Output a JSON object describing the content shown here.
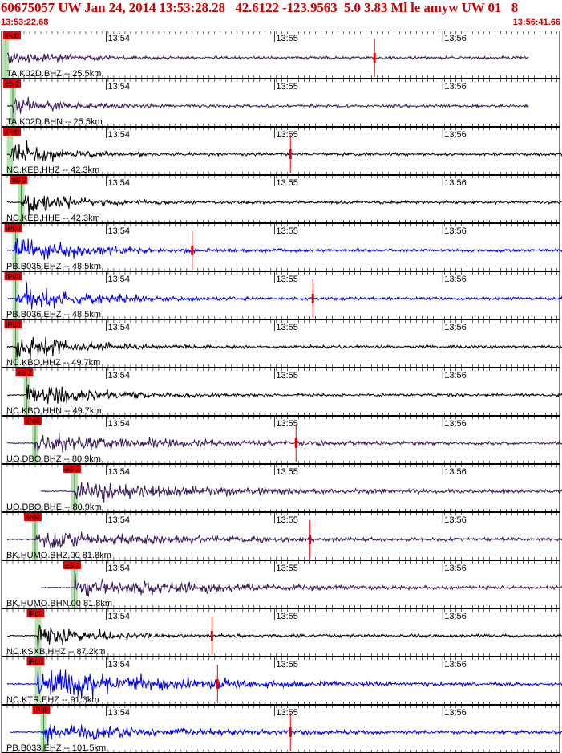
{
  "title": "60675057 UW Jan 24, 2014 13:53:28.28   42.6122 -123.9563  5.0 3.83 Ml le amyw UW 01   8",
  "time_start": "13:53:22.68",
  "time_end": "13:56:41.66",
  "colors": {
    "title": "#cc0000",
    "pick_box": "#ee0000",
    "pick_shade": "#b8e0b0",
    "trace_black": "#000000",
    "trace_blue": "#0000ee",
    "trace_purple": "#3a1a5a",
    "coda": "#ee0000"
  },
  "chart_data": {
    "type": "line",
    "x_unit": "time (UTC)",
    "x_range": [
      "13:53:22.68",
      "13:56:41.66"
    ],
    "time_ticks": [
      "13:54",
      "13:55",
      "13:56"
    ],
    "traces": [
      {
        "label": "TA.K02D.BHZ -- 25.5km",
        "pick": "iPd0",
        "pick_time_s": 1.5,
        "color": "purple",
        "amp": 0.8,
        "decay": 14,
        "end_s": 188,
        "marker_s": 133
      },
      {
        "label": "TA.K02D.BHN -- 25.5km",
        "pick": "eS 2",
        "pick_time_s": 4,
        "color": "purple",
        "amp": 0.7,
        "decay": 14,
        "end_s": 188
      },
      {
        "label": "NC.KEB.HHZ -- 42.3km",
        "pick": "iPd0",
        "pick_time_s": 3,
        "color": "black",
        "amp": 1.0,
        "decay": 16,
        "end_s": 200,
        "marker_s": 103
      },
      {
        "label": "NC.KEB.HHE -- 42.3km",
        "pick": "eS 2",
        "pick_time_s": 7,
        "color": "black",
        "amp": 1.0,
        "decay": 16,
        "end_s": 200
      },
      {
        "label": "PB.B035.EHZ -- 48.5km",
        "pick": "iPd0",
        "pick_time_s": 5,
        "color": "blue",
        "amp": 1.1,
        "decay": 22,
        "end_s": 200,
        "marker_s": 68
      },
      {
        "label": "PB.B036.EHZ -- 48.5km",
        "pick": "iPd0",
        "pick_time_s": 5,
        "color": "blue",
        "amp": 1.1,
        "decay": 22,
        "end_s": 200,
        "marker_s": 111
      },
      {
        "label": "NC.KBO.HHZ -- 49.7km",
        "pick": "iPd0",
        "pick_time_s": 5,
        "color": "black",
        "amp": 1.1,
        "decay": 20,
        "end_s": 200
      },
      {
        "label": "NC.KBO.HHN -- 49.7km",
        "pick": "eS 2",
        "pick_time_s": 9,
        "color": "black",
        "amp": 1.1,
        "decay": 20,
        "end_s": 200
      },
      {
        "label": "UO.DBO.BHZ -- 80.9km",
        "pick": "iPd0",
        "pick_time_s": 12,
        "color": "purple",
        "amp": 0.7,
        "decay": 45,
        "end_s": 200,
        "marker_s": 105
      },
      {
        "label": "UO.DBO.BHE -- 80.9km",
        "pick": "eS 2",
        "pick_time_s": 26,
        "color": "purple",
        "amp": 0.8,
        "decay": 45,
        "end_s": 200
      },
      {
        "label": "BK.HUMO.BHZ.00 81.8km",
        "pick": "iPd0",
        "pick_time_s": 12,
        "color": "purple",
        "amp": 0.7,
        "decay": 45,
        "end_s": 200,
        "marker_s": 110
      },
      {
        "label": "BK.HUMO.BHN.00 81.8km",
        "pick": "eS 2",
        "pick_time_s": 26,
        "color": "purple",
        "amp": 0.8,
        "decay": 45,
        "end_s": 200
      },
      {
        "label": "NC.KSXB.HHZ -- 87.2km",
        "pick": "iPd0",
        "pick_time_s": 13,
        "color": "black",
        "amp": 1.0,
        "decay": 18,
        "end_s": 200,
        "marker_s": 75
      },
      {
        "label": "NC.KTR.EHZ -- 91.3km",
        "pick": "iPd0",
        "pick_time_s": 13,
        "color": "blue",
        "amp": 1.4,
        "decay": 40,
        "end_s": 200,
        "marker_s": 77
      },
      {
        "label": "PB.B033.EHZ -- 101.5km",
        "pick": "iPd0",
        "pick_time_s": 15,
        "color": "blue",
        "amp": 0.7,
        "decay": 40,
        "end_s": 200,
        "marker_s": 103
      }
    ]
  }
}
